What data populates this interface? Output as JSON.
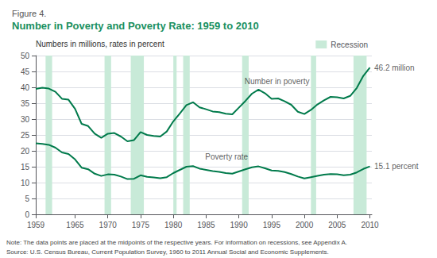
{
  "chart_data": {
    "type": "line",
    "subtitle": "Figure 4.",
    "title": "Number in Poverty and Poverty Rate: 1959 to 2010",
    "ylabel": "Numbers in millions, rates in percent",
    "x": [
      1959,
      1960,
      1961,
      1962,
      1963,
      1964,
      1965,
      1966,
      1967,
      1968,
      1969,
      1970,
      1971,
      1972,
      1973,
      1974,
      1975,
      1976,
      1977,
      1978,
      1979,
      1980,
      1981,
      1982,
      1983,
      1984,
      1985,
      1986,
      1987,
      1988,
      1989,
      1990,
      1991,
      1992,
      1993,
      1994,
      1995,
      1996,
      1997,
      1998,
      1999,
      2000,
      2001,
      2002,
      2003,
      2004,
      2005,
      2006,
      2007,
      2008,
      2009,
      2010
    ],
    "series": [
      {
        "color": "#007a4b",
        "values": [
          39.5,
          39.9,
          39.6,
          38.6,
          36.4,
          36.1,
          33.2,
          28.5,
          27.8,
          25.4,
          24.1,
          25.4,
          25.6,
          24.5,
          23.0,
          23.4,
          25.9,
          25.0,
          24.7,
          24.5,
          26.1,
          29.3,
          31.8,
          34.4,
          35.3,
          33.7,
          33.1,
          32.4,
          32.2,
          31.7,
          31.5,
          33.6,
          35.7,
          38.0,
          39.3,
          38.1,
          36.4,
          36.5,
          35.6,
          34.5,
          32.3,
          31.6,
          32.9,
          34.6,
          35.9,
          37.0,
          36.9,
          36.5,
          37.3,
          39.8,
          43.6,
          46.2
        ]
      },
      {
        "color": "#007a4b",
        "values": [
          22.4,
          22.2,
          21.9,
          21.0,
          19.5,
          19.0,
          17.3,
          14.7,
          14.2,
          12.8,
          12.1,
          12.6,
          12.5,
          11.9,
          11.1,
          11.2,
          12.3,
          11.8,
          11.6,
          11.4,
          11.7,
          13.0,
          14.0,
          15.0,
          15.2,
          14.4,
          14.0,
          13.6,
          13.4,
          13.0,
          12.8,
          13.5,
          14.2,
          14.8,
          15.1,
          14.5,
          13.8,
          13.7,
          13.3,
          12.7,
          11.9,
          11.3,
          11.7,
          12.1,
          12.5,
          12.7,
          12.6,
          12.3,
          12.5,
          13.2,
          14.3,
          15.1
        ]
      }
    ],
    "recession_label": "Recession",
    "recession_color": "#c8ead8",
    "recession_bands": [
      [
        1960.5,
        1961.5
      ],
      [
        1969.5,
        1970.5
      ],
      [
        1973.5,
        1975.5
      ],
      [
        1980.0,
        1980.5
      ],
      [
        1981.5,
        1982.5
      ],
      [
        1990.5,
        1991.5
      ],
      [
        2001.0,
        2001.8
      ],
      [
        2007.5,
        2009.5
      ]
    ],
    "annotations": [
      {
        "text": "Number in poverty",
        "x": 1990.5,
        "y": 42.0
      },
      {
        "text": "Poverty rate",
        "x": 1984.5,
        "y": 18.2
      },
      {
        "text": "46.2 million",
        "x": 2010.3,
        "y": 46.2
      },
      {
        "text": "15.1 percent",
        "x": 2010.3,
        "y": 15.1
      }
    ],
    "notes": [
      "Note: The data points are placed at the midpoints of the respective years. For information on recessions, see Appendix A.",
      "Source: U.S. Census Bureau, Current Population Survey, 1960 to 2011 Annual Social and Economic Supplements."
    ],
    "xlim": [
      1959,
      2010.3
    ],
    "ylim": [
      0,
      50
    ],
    "yticks": [
      0,
      5,
      10,
      15,
      20,
      25,
      30,
      35,
      40,
      45,
      50
    ],
    "xticks": [
      1959,
      1965,
      1970,
      1975,
      1980,
      1985,
      1990,
      1995,
      2000,
      2005,
      2010
    ],
    "grid": true,
    "legend": "upper right"
  }
}
